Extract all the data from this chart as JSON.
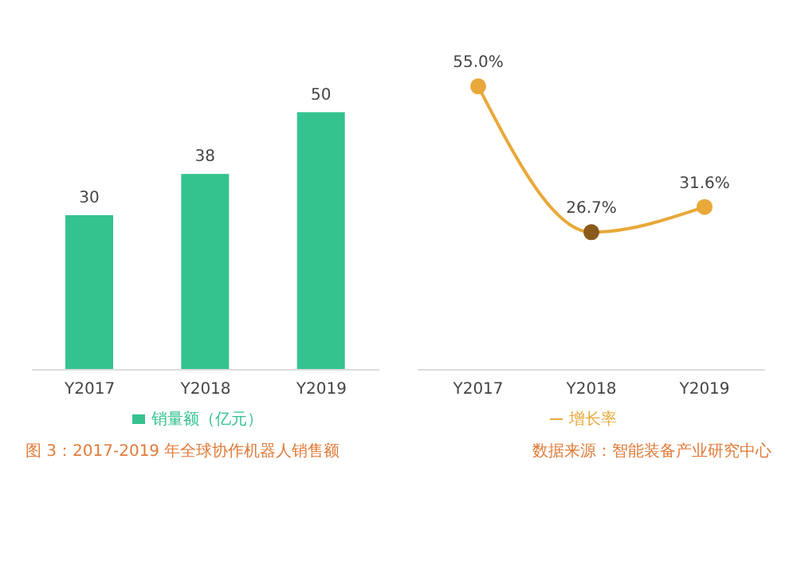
{
  "chart_data": [
    {
      "type": "bar",
      "categories": [
        "Y2017",
        "Y2018",
        "Y2019"
      ],
      "series": [
        {
          "name": "销量额（亿元）",
          "color": "#34c38f",
          "values": [
            30,
            38,
            50
          ]
        }
      ],
      "data_labels": true,
      "legend": "bottom",
      "annotations": [
        "图 3：2017-2019 年全球协作机器人销售额"
      ]
    },
    {
      "type": "line",
      "categories": [
        "Y2017",
        "Y2018",
        "Y2019"
      ],
      "series": [
        {
          "name": "增长率",
          "color": "#e8a93a",
          "colors": [
            "#e8a93a",
            "#8a5a1a",
            "#e8a93a"
          ],
          "values": [
            55.0,
            26.7,
            31.6
          ],
          "value_labels": [
            "55.0%",
            "26.7%",
            "31.6%"
          ]
        }
      ],
      "marker": "circle",
      "legend": "bottom",
      "annotations": [
        "数据来源：智能装备产业研究中心"
      ]
    }
  ]
}
